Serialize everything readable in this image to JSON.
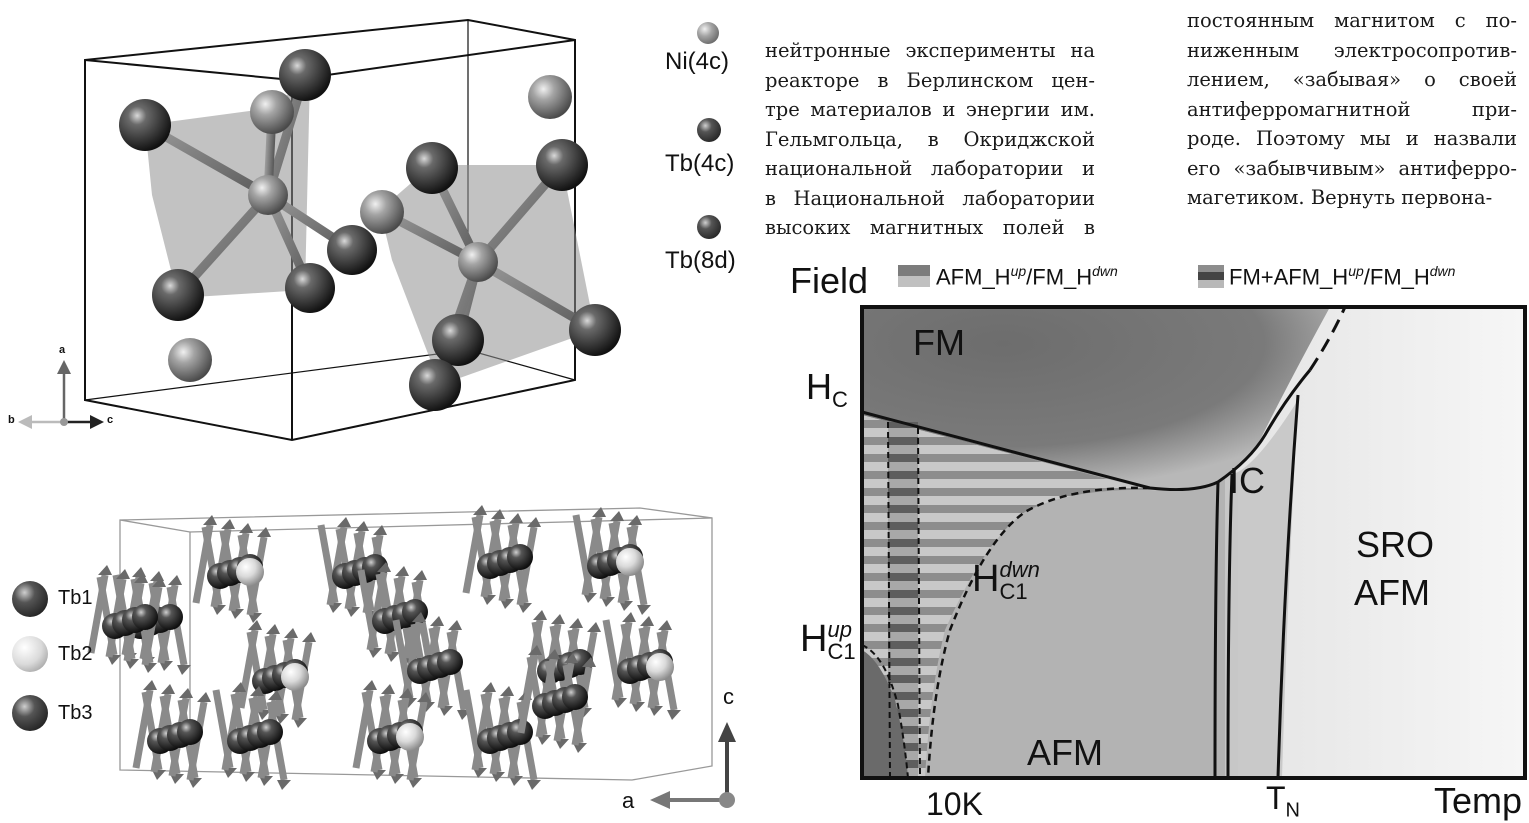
{
  "top_strip": "",
  "column_middle": [
    "нейтронные эксперименты на",
    "реакторе в Берлинском цен-",
    "тре материалов и энергии им.",
    "Гельмгольца, в Окриджской",
    "национальной лаборатории и",
    "в Национальной лаборатории",
    "высоких магнитных полей в"
  ],
  "column_right": [
    "постоянным магнитом с по-",
    "ниженным электросопротив-",
    "лением, «забывая» о своей",
    "антиферромагнитной при-",
    "роде. Поэтому мы и назвали",
    "его «забывчивым» антиферро-",
    "магетиком. Вернуть первона-"
  ],
  "crystal_legend": [
    {
      "label": "Ni(4c)",
      "color": "#9a9a9a"
    },
    {
      "label": "Tb(4c)",
      "color": "#2b2b2b"
    },
    {
      "label": "Tb(8d)",
      "color": "#3c3c3c"
    }
  ],
  "crystal_axes": {
    "a": "a",
    "b": "b",
    "c": "c"
  },
  "magnetic_legend": [
    {
      "label": "Tb1",
      "color": "#2e2e2e"
    },
    {
      "label": "Tb2",
      "color": "#d8d8d8"
    },
    {
      "label": "Tb3",
      "color": "#444444"
    }
  ],
  "magnetic_axes": {
    "a": "a",
    "c": "c"
  },
  "phase_diagram": {
    "y_axis_label": "Field",
    "x_axis_label": "Temp",
    "legend": [
      {
        "prefix": "AFM_H",
        "sup1": "up",
        "mid": "/FM_H",
        "sup2": "dwn"
      },
      {
        "prefix": "FM+AFM_H",
        "sup1": "up",
        "mid": "/FM_H",
        "sup2": "dwn"
      }
    ],
    "regions": {
      "fm": "FM",
      "afm": "AFM",
      "ic": "IC",
      "sro_line1": "SRO",
      "sro_line2": "AFM"
    },
    "hc": {
      "base": "H",
      "sub": "C"
    },
    "hc1_dwn": {
      "base": "H",
      "sub": "C1",
      "sup": "dwn"
    },
    "hc1_up": {
      "base": "H",
      "sub": "C1",
      "sup": "up"
    },
    "x_ticks": [
      {
        "label": "10K"
      },
      {
        "base": "T",
        "sub": "N"
      }
    ]
  },
  "colors": {
    "fm_dark": "#6e6e6e",
    "afm_mid": "#b3b3b3",
    "sro_light": "#f1f1f1",
    "stripe_dark": "#7a7a7a",
    "stripe_light": "#c6c6c6"
  }
}
